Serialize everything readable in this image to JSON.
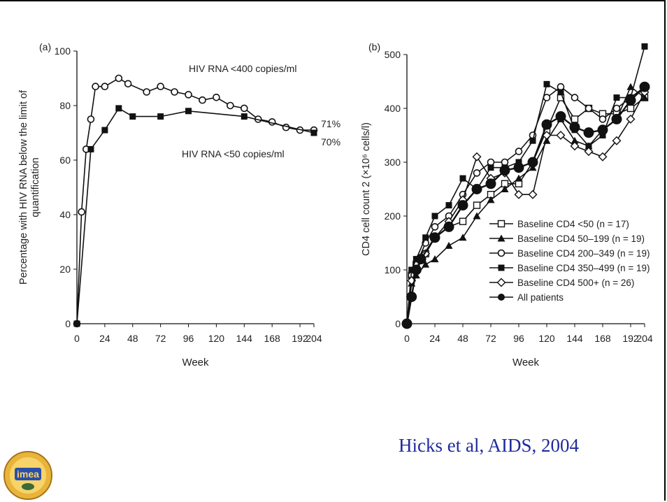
{
  "chart_data": [
    {
      "type": "line",
      "panel_label": "(a)",
      "xlabel": "Week",
      "ylabel": "Percentage with HIV RNA below the limit of quantification",
      "xlim": [
        0,
        204
      ],
      "ylim": [
        0,
        100
      ],
      "xticks": [
        "0",
        "24",
        "48",
        "72",
        "96",
        "120",
        "144",
        "168",
        "192",
        "204"
      ],
      "yticks": [
        "0",
        "20",
        "40",
        "60",
        "80",
        "100"
      ],
      "series": [
        {
          "name": "HIV RNA <400 copies/ml",
          "marker": "circle-open",
          "end_label": "71%",
          "x": [
            0,
            4,
            8,
            12,
            16,
            24,
            36,
            44,
            60,
            72,
            84,
            96,
            108,
            120,
            132,
            144,
            156,
            168,
            180,
            192,
            204
          ],
          "y": [
            0,
            41,
            64,
            75,
            87,
            87,
            90,
            88,
            85,
            87,
            85,
            84,
            82,
            83,
            80,
            79,
            75,
            74,
            72,
            71,
            71
          ]
        },
        {
          "name": "HIV RNA <50 copies/ml",
          "marker": "square-filled",
          "end_label": "70%",
          "x": [
            0,
            12,
            24,
            36,
            48,
            72,
            96,
            144,
            204
          ],
          "y": [
            0,
            64,
            71,
            79,
            76,
            76,
            78,
            76,
            70
          ]
        }
      ]
    },
    {
      "type": "line",
      "panel_label": "(b)",
      "xlabel": "Week",
      "ylabel": "CD4 cell count 2 (×10⁶ cells/l)",
      "xlim": [
        0,
        204
      ],
      "ylim": [
        0,
        500
      ],
      "xticks": [
        "0",
        "24",
        "48",
        "72",
        "96",
        "120",
        "144",
        "168",
        "192",
        "204"
      ],
      "yticks": [
        "0",
        "100",
        "200",
        "300",
        "400",
        "500"
      ],
      "series": [
        {
          "name": "Baseline CD4  <50 (n = 17)",
          "marker": "square-open",
          "x": [
            0,
            4,
            8,
            16,
            24,
            36,
            48,
            60,
            72,
            84,
            96,
            108,
            120,
            132,
            144,
            156,
            168,
            180,
            192,
            204
          ],
          "y": [
            0,
            90,
            110,
            130,
            160,
            180,
            190,
            220,
            240,
            260,
            260,
            300,
            360,
            420,
            380,
            400,
            390,
            390,
            400,
            420
          ]
        },
        {
          "name": "Baseline CD4  50–199 (n = 19)",
          "marker": "triangle-filled",
          "x": [
            0,
            4,
            8,
            16,
            24,
            36,
            48,
            60,
            72,
            84,
            96,
            108,
            120,
            132,
            144,
            156,
            168,
            180,
            192,
            204
          ],
          "y": [
            0,
            75,
            90,
            110,
            120,
            145,
            160,
            200,
            230,
            250,
            270,
            290,
            340,
            380,
            340,
            330,
            360,
            380,
            440,
            420
          ]
        },
        {
          "name": "Baseline CD4 200–349 (n = 19)",
          "marker": "circle-open",
          "x": [
            0,
            4,
            8,
            16,
            24,
            36,
            48,
            60,
            72,
            84,
            96,
            108,
            120,
            132,
            144,
            156,
            168,
            180,
            192,
            204
          ],
          "y": [
            0,
            90,
            110,
            150,
            180,
            200,
            240,
            280,
            300,
            300,
            320,
            350,
            420,
            440,
            420,
            400,
            380,
            400,
            420,
            440
          ]
        },
        {
          "name": "Baseline CD4 350–499 (n = 19)",
          "marker": "square-filled",
          "x": [
            0,
            4,
            8,
            16,
            24,
            36,
            48,
            60,
            72,
            84,
            96,
            108,
            120,
            132,
            144,
            156,
            168,
            180,
            192,
            204
          ],
          "y": [
            0,
            100,
            120,
            160,
            200,
            220,
            270,
            250,
            290,
            290,
            300,
            340,
            445,
            430,
            360,
            330,
            350,
            420,
            420,
            515
          ]
        },
        {
          "name": "Baseline CD4 500+ (n = 26)",
          "marker": "diamond-open",
          "x": [
            0,
            4,
            8,
            16,
            24,
            36,
            48,
            60,
            72,
            84,
            96,
            108,
            120,
            132,
            144,
            156,
            168,
            180,
            192,
            204
          ],
          "y": [
            0,
            80,
            100,
            130,
            160,
            190,
            230,
            310,
            270,
            280,
            240,
            240,
            350,
            350,
            330,
            320,
            310,
            340,
            380,
            430
          ]
        },
        {
          "name": "All patients",
          "marker": "circle-filled-large",
          "x": [
            0,
            4,
            8,
            12,
            24,
            36,
            48,
            60,
            72,
            84,
            96,
            108,
            120,
            132,
            144,
            156,
            168,
            180,
            192,
            204
          ],
          "y": [
            0,
            50,
            100,
            120,
            160,
            180,
            220,
            250,
            260,
            285,
            290,
            300,
            370,
            385,
            365,
            355,
            360,
            380,
            415,
            440
          ]
        }
      ]
    }
  ],
  "citation": "Hicks et al, AIDS, 2004",
  "logo": {
    "text": "imea",
    "icon": "imea-logo"
  }
}
